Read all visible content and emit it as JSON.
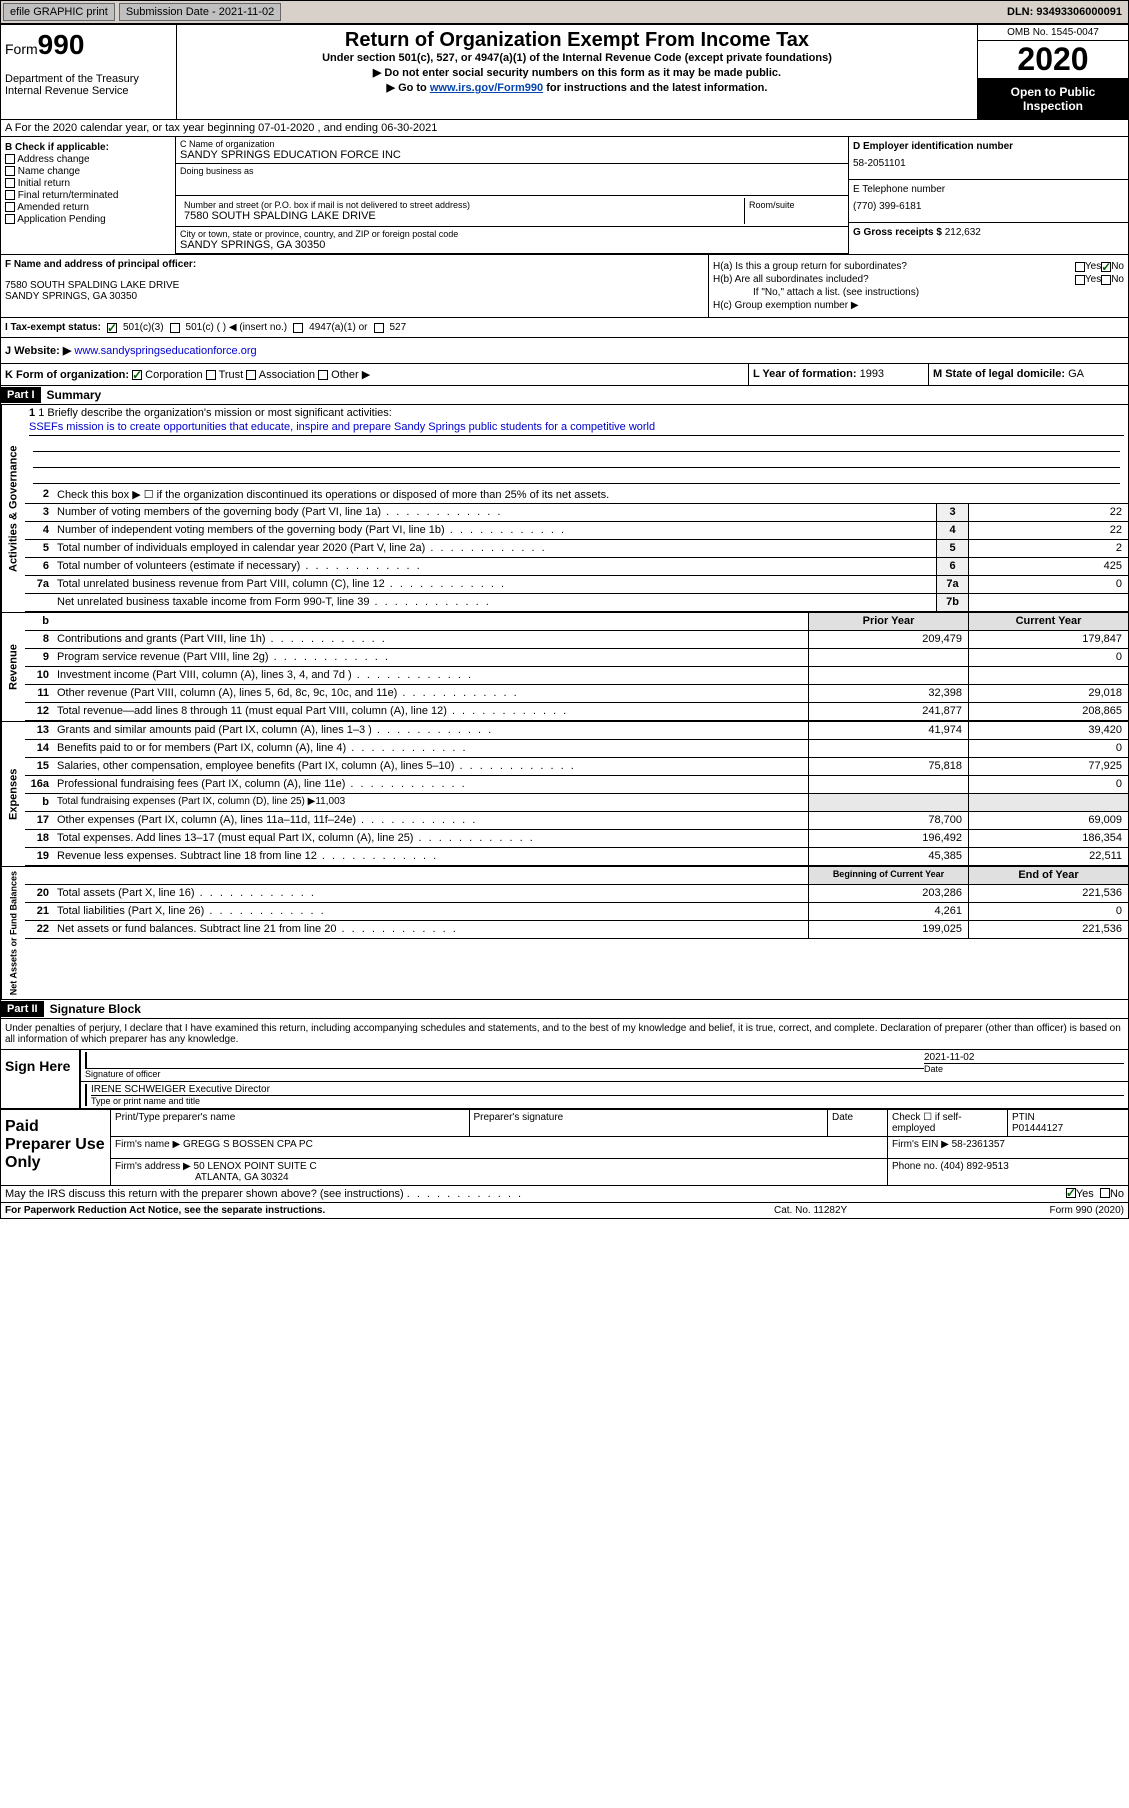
{
  "topbar": {
    "efile": "efile GRAPHIC print",
    "sub_label": "Submission Date - 2021-11-02",
    "dln": "DLN: 93493306000091"
  },
  "header": {
    "form_word": "Form",
    "form_num": "990",
    "dept": "Department of the Treasury\nInternal Revenue Service",
    "title": "Return of Organization Exempt From Income Tax",
    "sub1": "Under section 501(c), 527, or 4947(a)(1) of the Internal Revenue Code (except private foundations)",
    "sub2": "▶ Do not enter social security numbers on this form as it may be made public.",
    "sub3_pre": "▶ Go to ",
    "sub3_link": "www.irs.gov/Form990",
    "sub3_post": " for instructions and the latest information.",
    "omb": "OMB No. 1545-0047",
    "year": "2020",
    "open": "Open to Public Inspection"
  },
  "row_a": "A For the 2020 calendar year, or tax year beginning 07-01-2020   , and ending 06-30-2021",
  "b": {
    "label": "B Check if applicable:",
    "addr": "Address change",
    "name": "Name change",
    "init": "Initial return",
    "final": "Final return/terminated",
    "amend": "Amended return",
    "app": "Application Pending"
  },
  "c": {
    "name_label": "C Name of organization",
    "name": "SANDY SPRINGS EDUCATION FORCE INC",
    "dba_label": "Doing business as",
    "street_label": "Number and street (or P.O. box if mail is not delivered to street address)",
    "room_label": "Room/suite",
    "street": "7580 SOUTH SPALDING LAKE DRIVE",
    "city_label": "City or town, state or province, country, and ZIP or foreign postal code",
    "city": "SANDY SPRINGS, GA  30350"
  },
  "d": {
    "ein_label": "D Employer identification number",
    "ein": "58-2051101",
    "tel_label": "E Telephone number",
    "tel": "(770) 399-6181",
    "gross_label": "G Gross receipts $",
    "gross": "212,632"
  },
  "f": {
    "label": "F  Name and address of principal officer:",
    "addr1": "7580 SOUTH SPALDING LAKE DRIVE",
    "addr2": "SANDY SPRINGS, GA  30350"
  },
  "h": {
    "a": "H(a)  Is this a group return for subordinates?",
    "b": "H(b)  Are all subordinates included?",
    "b_note": "If \"No,\" attach a list. (see instructions)",
    "c": "H(c)  Group exemption number ▶",
    "yes": "Yes",
    "no": "No"
  },
  "i": {
    "label": "I  Tax-exempt status:",
    "o1": "501(c)(3)",
    "o2": "501(c) (   ) ◀ (insert no.)",
    "o3": "4947(a)(1) or",
    "o4": "527"
  },
  "j": {
    "label": "J  Website: ▶",
    "url": "www.sandyspringseducationforce.org"
  },
  "k": {
    "label": "K Form of organization:",
    "corp": "Corporation",
    "trust": "Trust",
    "assoc": "Association",
    "other": "Other ▶",
    "l_label": "L Year of formation:",
    "l_val": "1993",
    "m_label": "M State of legal domicile:",
    "m_val": "GA"
  },
  "parts": {
    "p1": "Part I",
    "p1_title": "Summary",
    "p2": "Part II",
    "p2_title": "Signature Block"
  },
  "summary": {
    "q1_label": "1  Briefly describe the organization's mission or most significant activities:",
    "q1_text": "SSEFs mission is to create opportunities that educate, inspire and prepare Sandy Springs public students for a competitive world",
    "q2": "Check this box ▶ ☐  if the organization discontinued its operations or disposed of more than 25% of its net assets.",
    "rows_gov": [
      {
        "n": "3",
        "t": "Number of voting members of the governing body (Part VI, line 1a)",
        "box": "3",
        "v": "22"
      },
      {
        "n": "4",
        "t": "Number of independent voting members of the governing body (Part VI, line 1b)",
        "box": "4",
        "v": "22"
      },
      {
        "n": "5",
        "t": "Total number of individuals employed in calendar year 2020 (Part V, line 2a)",
        "box": "5",
        "v": "2"
      },
      {
        "n": "6",
        "t": "Total number of volunteers (estimate if necessary)",
        "box": "6",
        "v": "425"
      },
      {
        "n": "7a",
        "t": "Total unrelated business revenue from Part VIII, column (C), line 12",
        "box": "7a",
        "v": "0"
      },
      {
        "n": "",
        "t": "Net unrelated business taxable income from Form 990-T, line 39",
        "box": "7b",
        "v": ""
      }
    ],
    "col_prior": "Prior Year",
    "col_curr": "Current Year",
    "rows_rev": [
      {
        "n": "8",
        "t": "Contributions and grants (Part VIII, line 1h)",
        "p": "209,479",
        "c": "179,847"
      },
      {
        "n": "9",
        "t": "Program service revenue (Part VIII, line 2g)",
        "p": "",
        "c": "0"
      },
      {
        "n": "10",
        "t": "Investment income (Part VIII, column (A), lines 3, 4, and 7d )",
        "p": "",
        "c": ""
      },
      {
        "n": "11",
        "t": "Other revenue (Part VIII, column (A), lines 5, 6d, 8c, 9c, 10c, and 11e)",
        "p": "32,398",
        "c": "29,018"
      },
      {
        "n": "12",
        "t": "Total revenue—add lines 8 through 11 (must equal Part VIII, column (A), line 12)",
        "p": "241,877",
        "c": "208,865"
      }
    ],
    "rows_exp": [
      {
        "n": "13",
        "t": "Grants and similar amounts paid (Part IX, column (A), lines 1–3 )",
        "p": "41,974",
        "c": "39,420"
      },
      {
        "n": "14",
        "t": "Benefits paid to or for members (Part IX, column (A), line 4)",
        "p": "",
        "c": "0"
      },
      {
        "n": "15",
        "t": "Salaries, other compensation, employee benefits (Part IX, column (A), lines 5–10)",
        "p": "75,818",
        "c": "77,925"
      },
      {
        "n": "16a",
        "t": "Professional fundraising fees (Part IX, column (A), line 11e)",
        "p": "",
        "c": "0"
      },
      {
        "n": "b",
        "t": "Total fundraising expenses (Part IX, column (D), line 25) ▶11,003",
        "p": "__NOCELL__",
        "c": "__NOCELL__"
      },
      {
        "n": "17",
        "t": "Other expenses (Part IX, column (A), lines 11a–11d, 11f–24e)",
        "p": "78,700",
        "c": "69,009"
      },
      {
        "n": "18",
        "t": "Total expenses. Add lines 13–17 (must equal Part IX, column (A), line 25)",
        "p": "196,492",
        "c": "186,354"
      },
      {
        "n": "19",
        "t": "Revenue less expenses. Subtract line 18 from line 12",
        "p": "45,385",
        "c": "22,511"
      }
    ],
    "col_begin": "Beginning of Current Year",
    "col_end": "End of Year",
    "rows_net": [
      {
        "n": "20",
        "t": "Total assets (Part X, line 16)",
        "p": "203,286",
        "c": "221,536"
      },
      {
        "n": "21",
        "t": "Total liabilities (Part X, line 26)",
        "p": "4,261",
        "c": "0"
      },
      {
        "n": "22",
        "t": "Net assets or fund balances. Subtract line 21 from line 20",
        "p": "199,025",
        "c": "221,536"
      }
    ]
  },
  "vlabels": {
    "gov": "Activities & Governance",
    "rev": "Revenue",
    "exp": "Expenses",
    "net": "Net Assets or Fund Balances"
  },
  "sig": {
    "decl": "Under penalties of perjury, I declare that I have examined this return, including accompanying schedules and statements, and to the best of my knowledge and belief, it is true, correct, and complete. Declaration of preparer (other than officer) is based on all information of which preparer has any knowledge.",
    "sign_here": "Sign Here",
    "sig_officer": "Signature of officer",
    "date_label": "Date",
    "date_val": "2021-11-02",
    "name": "IRENE SCHWEIGER Executive Director",
    "type_name": "Type or print name and title",
    "paid": "Paid Preparer Use Only",
    "prep_name_label": "Print/Type preparer's name",
    "prep_sig_label": "Preparer's signature",
    "check_self": "Check ☐ if self-employed",
    "ptin_label": "PTIN",
    "ptin": "P01444127",
    "firm_name_label": "Firm's name    ▶",
    "firm_name": "GREGG S BOSSEN CPA PC",
    "firm_ein_label": "Firm's EIN ▶",
    "firm_ein": "58-2361357",
    "firm_addr_label": "Firm's address ▶",
    "firm_addr1": "50 LENOX POINT SUITE C",
    "firm_addr2": "ATLANTA, GA  30324",
    "phone_label": "Phone no.",
    "phone": "(404) 892-9513",
    "discuss": "May the IRS discuss this return with the preparer shown above? (see instructions)"
  },
  "footer": {
    "l": "For Paperwork Reduction Act Notice, see the separate instructions.",
    "c": "Cat. No. 11282Y",
    "r": "Form 990 (2020)"
  }
}
